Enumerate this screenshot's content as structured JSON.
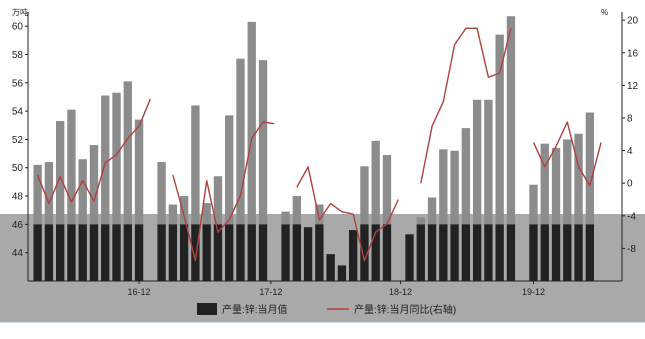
{
  "chart_data": {
    "type": "bar",
    "left_unit": "万吨",
    "right_unit": "%",
    "x_tick_labels": [
      "16-12",
      "17-12",
      "18-12",
      "19-12"
    ],
    "left_axis": {
      "ylim": [
        42,
        61
      ],
      "ticks": [
        44,
        46,
        48,
        50,
        52,
        54,
        56,
        58,
        60
      ]
    },
    "right_axis": {
      "ylim": [
        -12,
        21
      ],
      "ticks": [
        -8,
        -4,
        0,
        4,
        8,
        12,
        16,
        20
      ]
    },
    "legend_position": "bottom",
    "colors": {
      "bar": "#8c8c8c",
      "bar_lower": "#222222",
      "line": "#b0413e",
      "shade": "#a9a9a9",
      "legend_bar": "#222222"
    },
    "series": [
      {
        "name": "产量:锌:当月值",
        "kind": "bar",
        "axis": "left",
        "values": [
          50.2,
          50.4,
          53.3,
          54.1,
          50.6,
          51.6,
          55.1,
          55.3,
          56.1,
          53.4,
          null,
          50.4,
          47.4,
          48.0,
          54.4,
          47.5,
          49.4,
          53.7,
          57.7,
          60.3,
          57.6,
          null,
          46.9,
          48.0,
          45.8,
          47.4,
          43.9,
          43.1,
          45.6,
          50.1,
          51.9,
          50.9,
          null,
          45.3,
          46.5,
          47.9,
          51.3,
          51.2,
          52.8,
          54.8,
          54.8,
          59.4,
          60.7,
          null,
          48.8,
          51.7,
          51.4,
          52.0,
          52.4,
          53.9
        ]
      },
      {
        "name": "产量:锌:当月同比(右轴)",
        "kind": "line",
        "axis": "right",
        "values": [
          1.0,
          -2.5,
          0.8,
          -2.3,
          0.3,
          -2.2,
          2.5,
          3.5,
          5.5,
          7.0,
          10.3,
          null,
          1.0,
          -4.0,
          -9.5,
          0.3,
          -6.0,
          -4.5,
          -1.5,
          5.5,
          7.5,
          7.3,
          null,
          -0.5,
          2.0,
          -4.5,
          -2.5,
          -3.5,
          -3.8,
          -9.5,
          -6.0,
          -5.0,
          -2.0,
          null,
          0.0,
          7.0,
          10.0,
          17.0,
          19.0,
          19.0,
          13.0,
          13.5,
          19.0,
          null,
          5.0,
          2.0,
          4.5,
          7.5,
          2.0,
          -0.3,
          5.0,
          null
        ]
      }
    ]
  }
}
